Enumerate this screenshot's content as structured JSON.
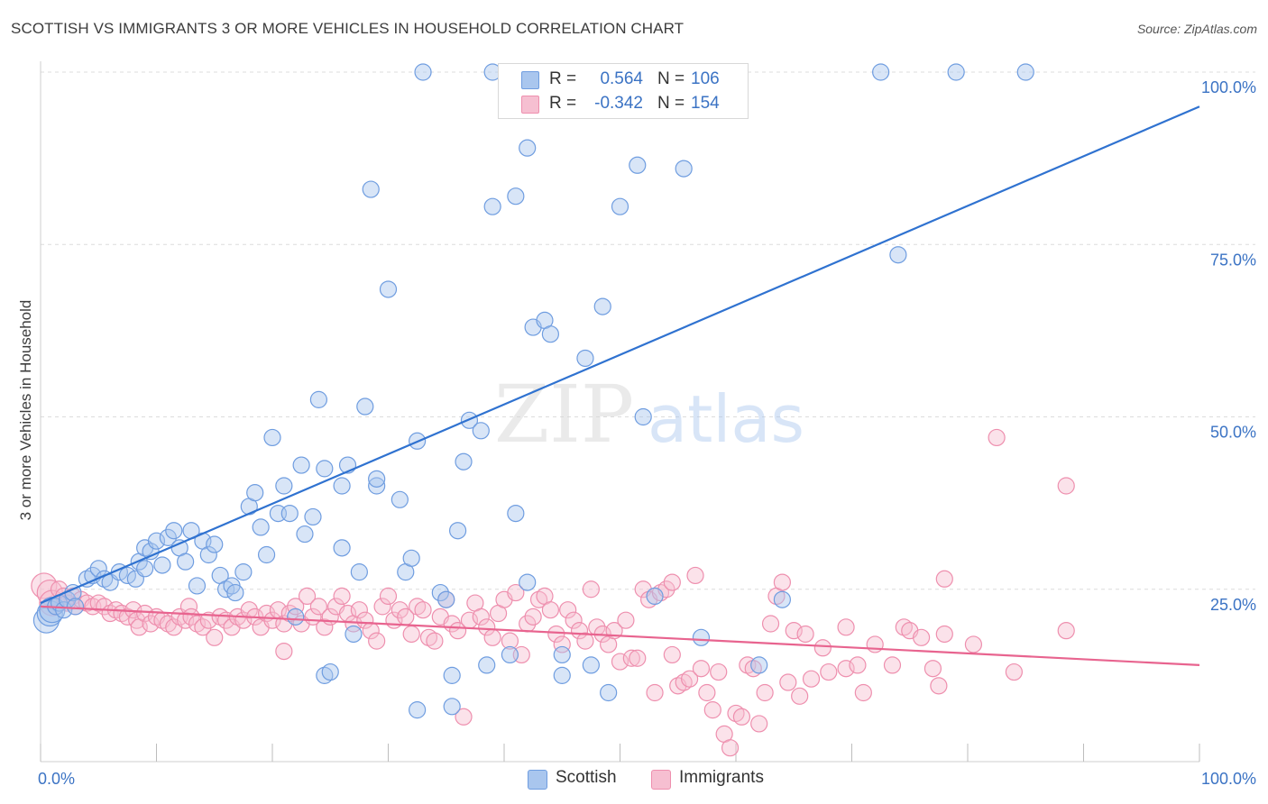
{
  "title": "SCOTTISH VS IMMIGRANTS 3 OR MORE VEHICLES IN HOUSEHOLD CORRELATION CHART",
  "source": "Source: ZipAtlas.com",
  "watermark": {
    "zip": "ZIP",
    "atlas": "atlas"
  },
  "colors": {
    "scottish_fill": "#a9c6ee",
    "scottish_stroke": "#6f9de0",
    "scottish_line": "#2f72d0",
    "immigrants_fill": "#f6bfd1",
    "immigrants_stroke": "#ee8fae",
    "immigrants_line": "#e8648f",
    "tick_label": "#3b73c4",
    "grid": "#dcdcdc"
  },
  "legend": {
    "rows": [
      {
        "r_label": "R =",
        "r_value": "0.564",
        "n_label": "N =",
        "n_value": "106"
      },
      {
        "r_label": "R =",
        "r_value": "-0.342",
        "n_label": "N =",
        "n_value": "154"
      }
    ]
  },
  "bottom_legend": {
    "scottish": "Scottish",
    "immigrants": "Immigrants"
  },
  "chart_data": {
    "type": "scatter",
    "title": "SCOTTISH VS IMMIGRANTS 3 OR MORE VEHICLES IN HOUSEHOLD CORRELATION CHART",
    "xlabel": "",
    "ylabel": "3 or more Vehicles in Household",
    "xlim": [
      0,
      100
    ],
    "ylim": [
      0,
      100
    ],
    "x_tick_labels": [
      {
        "value": 0,
        "label": "0.0%"
      },
      {
        "value": 100,
        "label": "100.0%"
      }
    ],
    "y_tick_labels": [
      {
        "value": 25,
        "label": "25.0%"
      },
      {
        "value": 50,
        "label": "50.0%"
      },
      {
        "value": 75,
        "label": "75.0%"
      },
      {
        "value": 100,
        "label": "100.0%"
      }
    ],
    "grid": true,
    "legend_position": "top-center",
    "series": [
      {
        "name": "Scottish",
        "r": 0.564,
        "n": 106,
        "trend": {
          "x": [
            0,
            100
          ],
          "y": [
            23,
            95
          ]
        },
        "points": [
          [
            0.5,
            20.5
          ],
          [
            0.8,
            21.5
          ],
          [
            1.0,
            22.0
          ],
          [
            1.3,
            22.5
          ],
          [
            1.6,
            23.0
          ],
          [
            2.0,
            22.0
          ],
          [
            2.3,
            23.5
          ],
          [
            2.8,
            24.5
          ],
          [
            3.0,
            22.5
          ],
          [
            4.0,
            26.5
          ],
          [
            4.5,
            27.0
          ],
          [
            5.0,
            28.0
          ],
          [
            5.5,
            26.5
          ],
          [
            6.0,
            26.0
          ],
          [
            6.8,
            27.5
          ],
          [
            7.5,
            27.0
          ],
          [
            8.2,
            26.5
          ],
          [
            8.5,
            29.0
          ],
          [
            9.0,
            28.0
          ],
          [
            9.0,
            31.0
          ],
          [
            9.5,
            30.5
          ],
          [
            10.0,
            32.0
          ],
          [
            10.5,
            28.5
          ],
          [
            11.0,
            32.5
          ],
          [
            11.5,
            33.5
          ],
          [
            12.0,
            31.0
          ],
          [
            12.5,
            29.0
          ],
          [
            13.0,
            33.5
          ],
          [
            13.5,
            25.5
          ],
          [
            14.0,
            32.0
          ],
          [
            14.5,
            30.0
          ],
          [
            15.0,
            31.5
          ],
          [
            15.5,
            27.0
          ],
          [
            16.0,
            25.0
          ],
          [
            16.5,
            25.5
          ],
          [
            16.8,
            24.5
          ],
          [
            17.5,
            27.5
          ],
          [
            18.0,
            37.0
          ],
          [
            18.5,
            39.0
          ],
          [
            19.0,
            34.0
          ],
          [
            19.5,
            30.0
          ],
          [
            20.0,
            47.0
          ],
          [
            20.5,
            36.0
          ],
          [
            21.0,
            40.0
          ],
          [
            21.5,
            36.0
          ],
          [
            22.0,
            21.0
          ],
          [
            22.5,
            43.0
          ],
          [
            22.8,
            33.0
          ],
          [
            23.5,
            35.5
          ],
          [
            24.0,
            52.5
          ],
          [
            24.5,
            42.5
          ],
          [
            24.5,
            12.5
          ],
          [
            25.0,
            13.0
          ],
          [
            26.0,
            40.0
          ],
          [
            26.0,
            31.0
          ],
          [
            26.5,
            43.0
          ],
          [
            27.0,
            18.5
          ],
          [
            27.5,
            27.5
          ],
          [
            28.0,
            51.5
          ],
          [
            28.5,
            83.0
          ],
          [
            29.0,
            40.0
          ],
          [
            29.0,
            41.0
          ],
          [
            30.0,
            68.5
          ],
          [
            31.0,
            38.0
          ],
          [
            31.5,
            27.5
          ],
          [
            32.0,
            29.5
          ],
          [
            32.5,
            46.5
          ],
          [
            32.5,
            7.5
          ],
          [
            33.0,
            100
          ],
          [
            34.5,
            24.5
          ],
          [
            35.0,
            23.5
          ],
          [
            35.5,
            12.5
          ],
          [
            35.5,
            8.0
          ],
          [
            36.0,
            33.5
          ],
          [
            36.5,
            43.5
          ],
          [
            37.0,
            49.5
          ],
          [
            38.0,
            48.0
          ],
          [
            38.5,
            14.0
          ],
          [
            39.0,
            80.5
          ],
          [
            39.0,
            100
          ],
          [
            40.5,
            15.5
          ],
          [
            41.0,
            82.0
          ],
          [
            41.0,
            36.0
          ],
          [
            42.0,
            89.0
          ],
          [
            42.0,
            26.0
          ],
          [
            42.5,
            63.0
          ],
          [
            43.5,
            64.0
          ],
          [
            44.0,
            62.0
          ],
          [
            45.0,
            15.5
          ],
          [
            45.0,
            12.5
          ],
          [
            47.0,
            58.5
          ],
          [
            47.5,
            14.0
          ],
          [
            48.5,
            66.0
          ],
          [
            49.0,
            10.0
          ],
          [
            50.0,
            80.5
          ],
          [
            51.5,
            86.5
          ],
          [
            52.0,
            50.0
          ],
          [
            53.0,
            24.0
          ],
          [
            54.0,
            100
          ],
          [
            55.5,
            86.0
          ],
          [
            57.0,
            18.0
          ],
          [
            58.5,
            100
          ],
          [
            62.0,
            14.0
          ],
          [
            64.0,
            23.5
          ],
          [
            74.0,
            73.5
          ],
          [
            72.5,
            100
          ],
          [
            79.0,
            100
          ],
          [
            85.0,
            100
          ]
        ]
      },
      {
        "name": "Immigrants",
        "r": -0.342,
        "n": 154,
        "trend": {
          "x": [
            0,
            100
          ],
          "y": [
            22.5,
            14
          ]
        },
        "points": [
          [
            0.3,
            25.5
          ],
          [
            0.8,
            24.5
          ],
          [
            1.0,
            23.0
          ],
          [
            1.3,
            22.5
          ],
          [
            1.6,
            25.0
          ],
          [
            2.0,
            24.0
          ],
          [
            2.3,
            23.0
          ],
          [
            2.8,
            24.0
          ],
          [
            3.0,
            22.5
          ],
          [
            3.5,
            23.5
          ],
          [
            4.0,
            23.0
          ],
          [
            4.5,
            22.5
          ],
          [
            5.0,
            23.0
          ],
          [
            5.5,
            22.5
          ],
          [
            6.0,
            21.5
          ],
          [
            6.5,
            22.0
          ],
          [
            7.0,
            21.5
          ],
          [
            7.5,
            21.0
          ],
          [
            8.0,
            22.0
          ],
          [
            8.3,
            20.5
          ],
          [
            8.5,
            19.5
          ],
          [
            9.0,
            21.5
          ],
          [
            9.5,
            20.0
          ],
          [
            10.0,
            21.0
          ],
          [
            10.5,
            20.5
          ],
          [
            11.0,
            20.0
          ],
          [
            11.5,
            19.5
          ],
          [
            12.0,
            21.0
          ],
          [
            12.5,
            20.5
          ],
          [
            12.8,
            22.5
          ],
          [
            13.0,
            21.0
          ],
          [
            13.5,
            20.0
          ],
          [
            14.0,
            19.5
          ],
          [
            14.5,
            20.5
          ],
          [
            15.0,
            18.0
          ],
          [
            15.5,
            21.0
          ],
          [
            16.0,
            20.5
          ],
          [
            16.5,
            19.5
          ],
          [
            17.0,
            21.0
          ],
          [
            17.5,
            20.5
          ],
          [
            18.0,
            22.0
          ],
          [
            18.5,
            21.0
          ],
          [
            19.0,
            19.5
          ],
          [
            19.5,
            21.5
          ],
          [
            20.0,
            20.5
          ],
          [
            20.5,
            22.0
          ],
          [
            21.0,
            20.0
          ],
          [
            21.0,
            16.0
          ],
          [
            21.5,
            21.5
          ],
          [
            22.0,
            22.5
          ],
          [
            22.5,
            20.0
          ],
          [
            23.0,
            24.0
          ],
          [
            23.5,
            21.0
          ],
          [
            24.0,
            22.5
          ],
          [
            24.5,
            19.5
          ],
          [
            25.0,
            21.0
          ],
          [
            25.5,
            22.5
          ],
          [
            26.0,
            24.0
          ],
          [
            26.5,
            21.5
          ],
          [
            27.0,
            20.0
          ],
          [
            27.5,
            22.0
          ],
          [
            28.0,
            20.5
          ],
          [
            28.5,
            19.0
          ],
          [
            29.0,
            17.5
          ],
          [
            29.5,
            22.5
          ],
          [
            30.0,
            24.0
          ],
          [
            30.5,
            20.5
          ],
          [
            31.0,
            22.0
          ],
          [
            31.5,
            21.0
          ],
          [
            32.0,
            18.5
          ],
          [
            32.5,
            22.5
          ],
          [
            33.0,
            22.0
          ],
          [
            33.5,
            18.0
          ],
          [
            34.0,
            17.5
          ],
          [
            34.5,
            21.0
          ],
          [
            35.0,
            23.5
          ],
          [
            35.5,
            20.0
          ],
          [
            36.0,
            19.0
          ],
          [
            36.5,
            6.5
          ],
          [
            37.0,
            20.5
          ],
          [
            37.5,
            23.0
          ],
          [
            38.0,
            21.0
          ],
          [
            38.5,
            19.5
          ],
          [
            39.0,
            18.0
          ],
          [
            39.5,
            21.5
          ],
          [
            40.0,
            23.5
          ],
          [
            40.5,
            17.5
          ],
          [
            41.0,
            24.5
          ],
          [
            41.5,
            15.5
          ],
          [
            42.0,
            20.0
          ],
          [
            42.5,
            21.0
          ],
          [
            43.0,
            23.5
          ],
          [
            43.5,
            24.0
          ],
          [
            44.0,
            22.0
          ],
          [
            44.5,
            18.5
          ],
          [
            45.0,
            17.0
          ],
          [
            45.5,
            22.0
          ],
          [
            46.0,
            20.5
          ],
          [
            46.5,
            19.0
          ],
          [
            47.0,
            17.5
          ],
          [
            47.5,
            25.0
          ],
          [
            48.0,
            19.5
          ],
          [
            48.5,
            18.5
          ],
          [
            49.0,
            17.0
          ],
          [
            49.5,
            19.0
          ],
          [
            50.0,
            14.5
          ],
          [
            50.5,
            20.5
          ],
          [
            51.0,
            15.0
          ],
          [
            51.5,
            15.0
          ],
          [
            52.0,
            25.0
          ],
          [
            52.5,
            23.5
          ],
          [
            53.0,
            10.0
          ],
          [
            53.5,
            24.5
          ],
          [
            54.0,
            25.0
          ],
          [
            54.5,
            26.0
          ],
          [
            54.5,
            15.5
          ],
          [
            55.0,
            11.0
          ],
          [
            55.5,
            11.5
          ],
          [
            56.0,
            12.0
          ],
          [
            56.5,
            27.0
          ],
          [
            57.0,
            13.5
          ],
          [
            57.5,
            10.0
          ],
          [
            58.0,
            7.5
          ],
          [
            58.5,
            13.0
          ],
          [
            59.0,
            4.0
          ],
          [
            59.5,
            2.0
          ],
          [
            60.0,
            7.0
          ],
          [
            60.5,
            6.5
          ],
          [
            61.0,
            14.0
          ],
          [
            61.5,
            13.5
          ],
          [
            62.0,
            5.5
          ],
          [
            62.5,
            10.0
          ],
          [
            63.0,
            20.0
          ],
          [
            63.5,
            24.0
          ],
          [
            64.0,
            26.0
          ],
          [
            64.5,
            11.5
          ],
          [
            65.0,
            19.0
          ],
          [
            65.5,
            9.5
          ],
          [
            66.0,
            18.5
          ],
          [
            66.5,
            12.0
          ],
          [
            67.5,
            16.5
          ],
          [
            68.0,
            13.0
          ],
          [
            69.5,
            19.5
          ],
          [
            69.5,
            13.5
          ],
          [
            70.5,
            14.0
          ],
          [
            71.0,
            10.0
          ],
          [
            72.0,
            17.0
          ],
          [
            73.5,
            14.0
          ],
          [
            74.5,
            19.5
          ],
          [
            75.0,
            19.0
          ],
          [
            76.0,
            18.0
          ],
          [
            77.0,
            13.5
          ],
          [
            77.5,
            11.0
          ],
          [
            78.0,
            18.5
          ],
          [
            78.0,
            26.5
          ],
          [
            80.5,
            17.0
          ],
          [
            82.5,
            47.0
          ],
          [
            84.0,
            13.0
          ],
          [
            88.5,
            40.0
          ],
          [
            88.5,
            19.0
          ]
        ]
      }
    ]
  }
}
